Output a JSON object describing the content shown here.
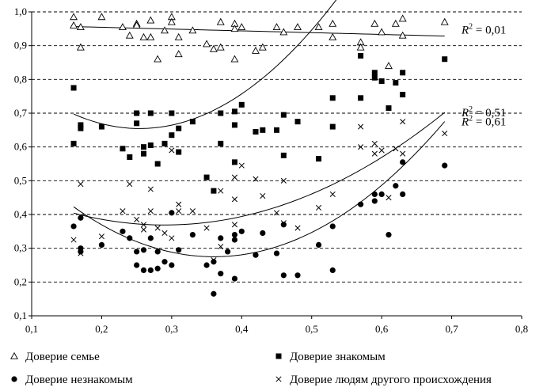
{
  "chart_data": {
    "type": "scatter",
    "xlim": [
      0.1,
      0.8
    ],
    "ylim": [
      0.1,
      1.0
    ],
    "grid": "horizontal-dashed",
    "legend_placement": "bottom",
    "xticks": [
      "0,1",
      "0,2",
      "0,3",
      "0,4",
      "0,5",
      "0,6",
      "0,7",
      "0,8"
    ],
    "yticks": [
      "0,1",
      "0,2",
      "0,3",
      "0,4",
      "0,5",
      "0,6",
      "0,7",
      "0,8",
      "0,9",
      "1,0"
    ],
    "series": [
      {
        "name": "Доверие семье",
        "marker": "triangle-open",
        "r2": "= 0,01",
        "trend": [
          0.965,
          -0.053,
          0.0
        ],
        "points": [
          [
            0.16,
            0.985
          ],
          [
            0.16,
            0.96
          ],
          [
            0.17,
            0.955
          ],
          [
            0.17,
            0.895
          ],
          [
            0.2,
            0.985
          ],
          [
            0.23,
            0.955
          ],
          [
            0.24,
            0.93
          ],
          [
            0.25,
            0.965
          ],
          [
            0.25,
            0.96
          ],
          [
            0.26,
            0.925
          ],
          [
            0.27,
            0.975
          ],
          [
            0.27,
            0.925
          ],
          [
            0.28,
            0.86
          ],
          [
            0.29,
            0.945
          ],
          [
            0.3,
            0.985
          ],
          [
            0.3,
            0.97
          ],
          [
            0.31,
            0.925
          ],
          [
            0.31,
            0.875
          ],
          [
            0.33,
            0.945
          ],
          [
            0.35,
            0.905
          ],
          [
            0.36,
            0.89
          ],
          [
            0.37,
            0.97
          ],
          [
            0.37,
            0.895
          ],
          [
            0.39,
            0.965
          ],
          [
            0.39,
            0.95
          ],
          [
            0.39,
            0.86
          ],
          [
            0.4,
            0.955
          ],
          [
            0.42,
            0.885
          ],
          [
            0.43,
            0.895
          ],
          [
            0.45,
            0.955
          ],
          [
            0.46,
            0.94
          ],
          [
            0.48,
            0.955
          ],
          [
            0.51,
            0.955
          ],
          [
            0.53,
            0.965
          ],
          [
            0.53,
            0.925
          ],
          [
            0.57,
            0.91
          ],
          [
            0.57,
            0.895
          ],
          [
            0.59,
            0.965
          ],
          [
            0.6,
            0.94
          ],
          [
            0.61,
            0.84
          ],
          [
            0.62,
            0.965
          ],
          [
            0.63,
            0.98
          ],
          [
            0.63,
            0.93
          ],
          [
            0.69,
            0.97
          ]
        ]
      },
      {
        "name": "Доверие знакомым",
        "marker": "square-filled",
        "r2": "= 0,53",
        "trend": [
          0.967,
          -2.458,
          4.833
        ],
        "points": [
          [
            0.16,
            0.775
          ],
          [
            0.16,
            0.61
          ],
          [
            0.17,
            0.665
          ],
          [
            0.17,
            0.655
          ],
          [
            0.2,
            0.66
          ],
          [
            0.23,
            0.595
          ],
          [
            0.24,
            0.57
          ],
          [
            0.25,
            0.7
          ],
          [
            0.25,
            0.67
          ],
          [
            0.26,
            0.6
          ],
          [
            0.26,
            0.58
          ],
          [
            0.27,
            0.7
          ],
          [
            0.27,
            0.605
          ],
          [
            0.28,
            0.55
          ],
          [
            0.29,
            0.61
          ],
          [
            0.3,
            0.7
          ],
          [
            0.3,
            0.635
          ],
          [
            0.31,
            0.655
          ],
          [
            0.31,
            0.585
          ],
          [
            0.33,
            0.675
          ],
          [
            0.35,
            0.51
          ],
          [
            0.36,
            0.47
          ],
          [
            0.37,
            0.7
          ],
          [
            0.37,
            0.61
          ],
          [
            0.39,
            0.705
          ],
          [
            0.39,
            0.665
          ],
          [
            0.39,
            0.555
          ],
          [
            0.4,
            0.725
          ],
          [
            0.42,
            0.645
          ],
          [
            0.43,
            0.65
          ],
          [
            0.45,
            0.65
          ],
          [
            0.46,
            0.695
          ],
          [
            0.46,
            0.575
          ],
          [
            0.48,
            0.675
          ],
          [
            0.51,
            0.565
          ],
          [
            0.53,
            0.745
          ],
          [
            0.53,
            0.66
          ],
          [
            0.57,
            0.87
          ],
          [
            0.57,
            0.745
          ],
          [
            0.59,
            0.82
          ],
          [
            0.59,
            0.805
          ],
          [
            0.6,
            0.795
          ],
          [
            0.61,
            0.715
          ],
          [
            0.62,
            0.79
          ],
          [
            0.63,
            0.82
          ],
          [
            0.63,
            0.755
          ],
          [
            0.69,
            0.86
          ]
        ]
      },
      {
        "name": "Доверие незнакомым",
        "marker": "circle-filled",
        "r2": "= 0,61",
        "trend": [
          0.753,
          -2.654,
          3.683
        ],
        "points": [
          [
            0.16,
            0.365
          ],
          [
            0.17,
            0.39
          ],
          [
            0.17,
            0.3
          ],
          [
            0.17,
            0.29
          ],
          [
            0.2,
            0.31
          ],
          [
            0.23,
            0.35
          ],
          [
            0.24,
            0.33
          ],
          [
            0.25,
            0.29
          ],
          [
            0.25,
            0.25
          ],
          [
            0.26,
            0.295
          ],
          [
            0.26,
            0.235
          ],
          [
            0.27,
            0.33
          ],
          [
            0.27,
            0.235
          ],
          [
            0.28,
            0.24
          ],
          [
            0.28,
            0.29
          ],
          [
            0.29,
            0.26
          ],
          [
            0.3,
            0.405
          ],
          [
            0.3,
            0.25
          ],
          [
            0.31,
            0.295
          ],
          [
            0.33,
            0.34
          ],
          [
            0.35,
            0.25
          ],
          [
            0.36,
            0.26
          ],
          [
            0.36,
            0.165
          ],
          [
            0.37,
            0.33
          ],
          [
            0.37,
            0.225
          ],
          [
            0.38,
            0.29
          ],
          [
            0.39,
            0.34
          ],
          [
            0.39,
            0.325
          ],
          [
            0.39,
            0.21
          ],
          [
            0.4,
            0.35
          ],
          [
            0.42,
            0.28
          ],
          [
            0.43,
            0.345
          ],
          [
            0.45,
            0.285
          ],
          [
            0.46,
            0.37
          ],
          [
            0.46,
            0.22
          ],
          [
            0.48,
            0.22
          ],
          [
            0.51,
            0.31
          ],
          [
            0.53,
            0.365
          ],
          [
            0.53,
            0.235
          ],
          [
            0.57,
            0.43
          ],
          [
            0.59,
            0.46
          ],
          [
            0.59,
            0.44
          ],
          [
            0.6,
            0.46
          ],
          [
            0.61,
            0.34
          ],
          [
            0.62,
            0.485
          ],
          [
            0.63,
            0.555
          ],
          [
            0.63,
            0.46
          ],
          [
            0.69,
            0.545
          ]
        ]
      },
      {
        "name": "Доверие людям другого происхождения",
        "marker": "cross",
        "r2": "= 0,51",
        "trend": [
          0.544,
          -1.208,
          2.083
        ],
        "points": [
          [
            0.16,
            0.325
          ],
          [
            0.17,
            0.49
          ],
          [
            0.17,
            0.285
          ],
          [
            0.2,
            0.335
          ],
          [
            0.23,
            0.41
          ],
          [
            0.24,
            0.49
          ],
          [
            0.25,
            0.385
          ],
          [
            0.26,
            0.355
          ],
          [
            0.26,
            0.37
          ],
          [
            0.27,
            0.475
          ],
          [
            0.27,
            0.41
          ],
          [
            0.28,
            0.36
          ],
          [
            0.29,
            0.345
          ],
          [
            0.3,
            0.59
          ],
          [
            0.3,
            0.33
          ],
          [
            0.31,
            0.43
          ],
          [
            0.31,
            0.41
          ],
          [
            0.33,
            0.41
          ],
          [
            0.35,
            0.36
          ],
          [
            0.36,
            0.265
          ],
          [
            0.37,
            0.47
          ],
          [
            0.37,
            0.305
          ],
          [
            0.39,
            0.51
          ],
          [
            0.39,
            0.445
          ],
          [
            0.39,
            0.37
          ],
          [
            0.4,
            0.545
          ],
          [
            0.42,
            0.505
          ],
          [
            0.43,
            0.455
          ],
          [
            0.45,
            0.405
          ],
          [
            0.46,
            0.5
          ],
          [
            0.46,
            0.375
          ],
          [
            0.48,
            0.36
          ],
          [
            0.51,
            0.42
          ],
          [
            0.53,
            0.46
          ],
          [
            0.57,
            0.66
          ],
          [
            0.57,
            0.6
          ],
          [
            0.59,
            0.61
          ],
          [
            0.59,
            0.58
          ],
          [
            0.6,
            0.59
          ],
          [
            0.61,
            0.45
          ],
          [
            0.62,
            0.595
          ],
          [
            0.63,
            0.675
          ],
          [
            0.63,
            0.58
          ],
          [
            0.69,
            0.64
          ]
        ]
      }
    ]
  }
}
